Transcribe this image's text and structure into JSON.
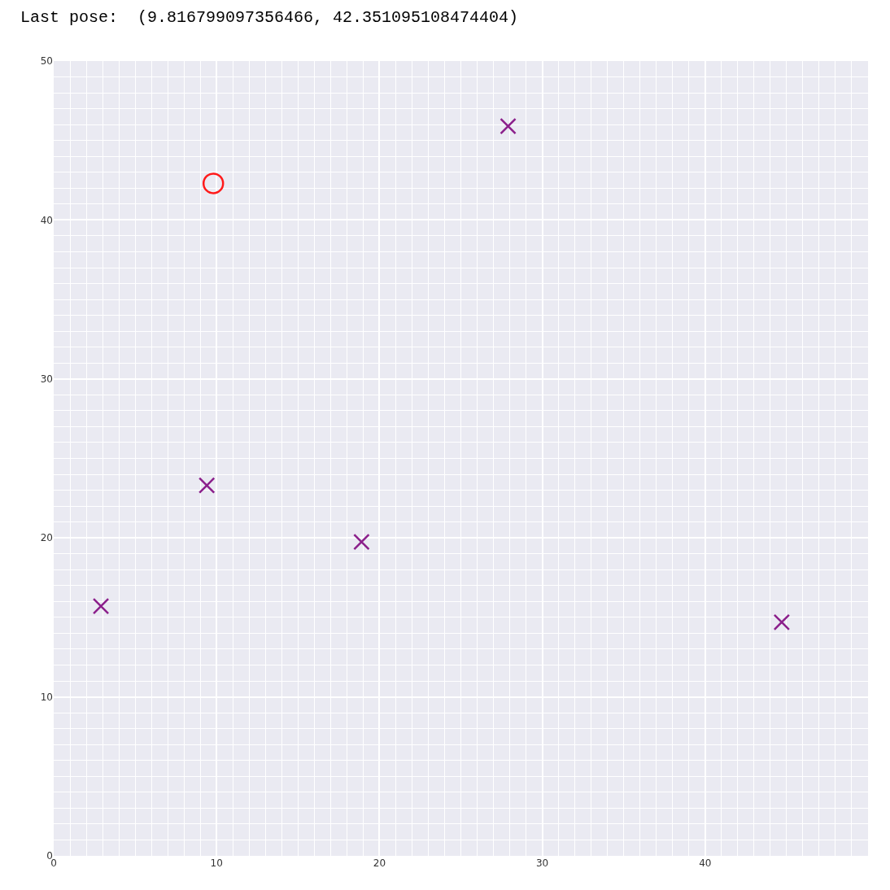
{
  "chart_data": {
    "type": "scatter",
    "title": "Last pose:  (9.816799097356466, 42.351095108474404)",
    "xlim": [
      0,
      50
    ],
    "ylim": [
      0,
      50
    ],
    "xticks": [
      0,
      10,
      20,
      30,
      40
    ],
    "yticks": [
      0,
      10,
      20,
      30,
      40,
      50
    ],
    "grid": true,
    "series": [
      {
        "color": "#8b1f8b",
        "marker": "cross",
        "x": [
          2.9,
          9.4,
          18.9,
          27.9,
          44.7
        ],
        "values": [
          15.7,
          23.3,
          19.75,
          45.9,
          14.7
        ]
      },
      {
        "color": "#ff1a1a",
        "marker": "circle",
        "x": [
          9.8
        ],
        "values": [
          42.3
        ]
      }
    ]
  }
}
